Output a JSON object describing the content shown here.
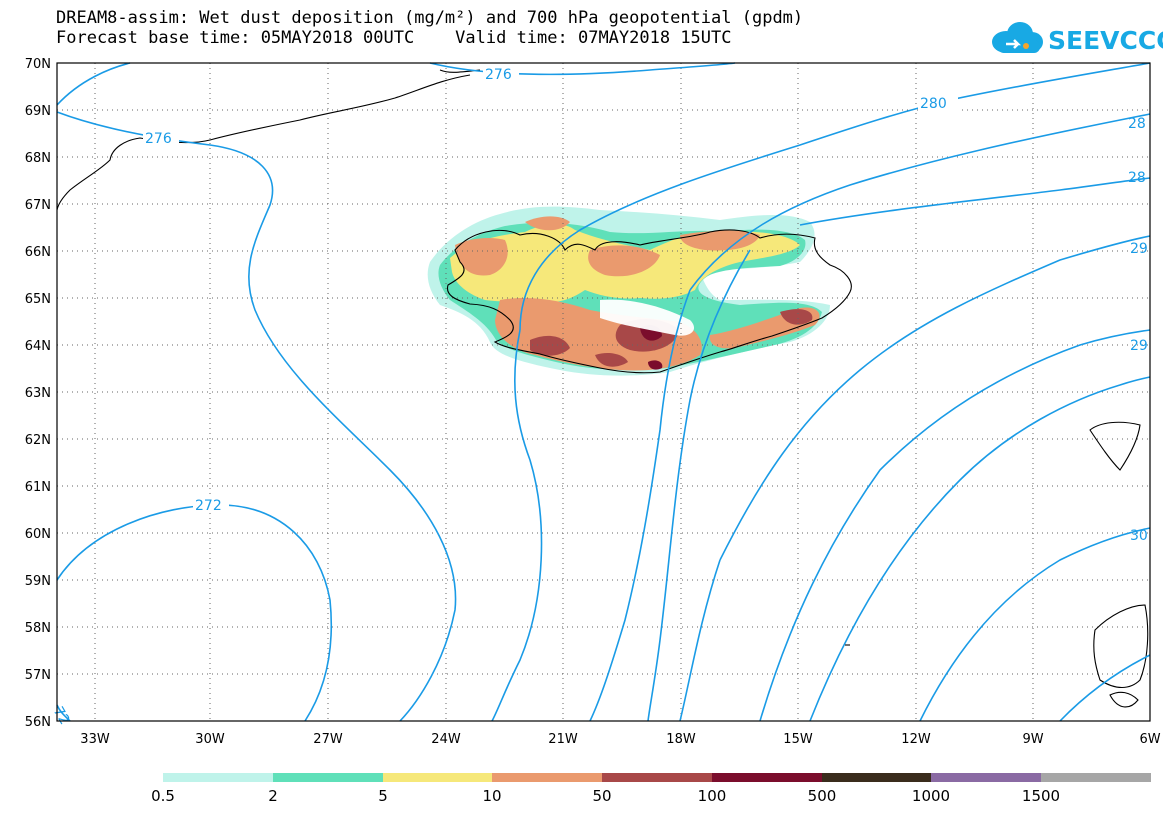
{
  "title": {
    "line1": "DREAM8-assim: Wet dust deposition (mg/m²) and 700 hPa geopotential (gpdm)",
    "line2": "Forecast base time: 05MAY2018 00UTC    Valid time: 07MAY2018 15UTC"
  },
  "logo": {
    "text": "SEEVCCC"
  },
  "map": {
    "lon_range": [
      -34.5,
      -6
    ],
    "lat_range": [
      56,
      70
    ],
    "lat_labels": [
      "70N",
      "69N",
      "68N",
      "67N",
      "66N",
      "65N",
      "64N",
      "63N",
      "62N",
      "61N",
      "60N",
      "59N",
      "58N",
      "57N",
      "56N"
    ],
    "lon_labels": [
      "33W",
      "30W",
      "27W",
      "24W",
      "21W",
      "18W",
      "15W",
      "12W",
      "9W",
      "6W"
    ],
    "contour_labels": [
      "276",
      "276",
      "280",
      "28",
      "28",
      "29",
      "29",
      "272",
      "30",
      "72"
    ]
  },
  "colorbar": {
    "colors": [
      "#bff3ea",
      "#5fe0b9",
      "#f6e87a",
      "#ea9a6e",
      "#a84848",
      "#7b0d2c",
      "#3a2c1c",
      "#8a6aa3",
      "#a6a6a6"
    ],
    "labels": [
      "0.5",
      "2",
      "5",
      "10",
      "50",
      "100",
      "500",
      "1000",
      "1500"
    ]
  }
}
